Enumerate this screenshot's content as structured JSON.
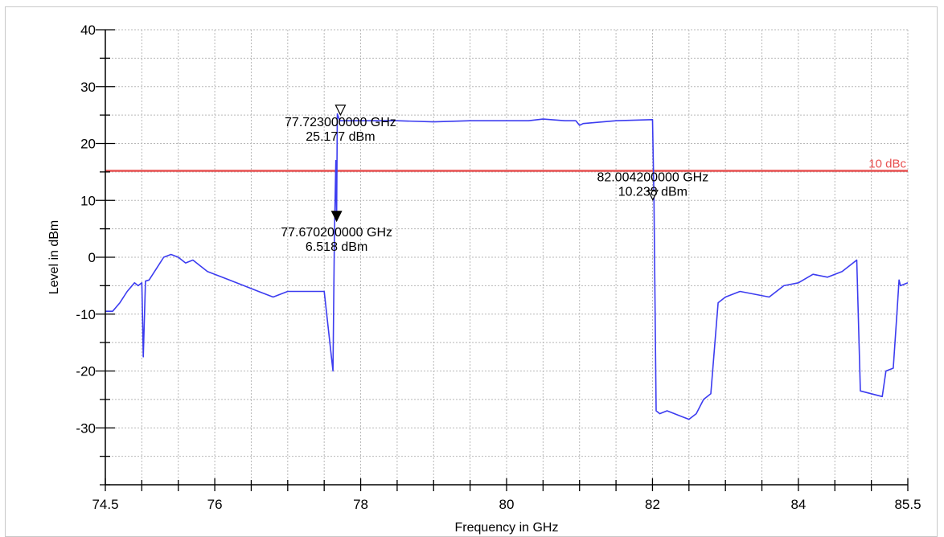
{
  "chart_data": {
    "type": "line",
    "xlabel": "Frequency in GHz",
    "ylabel": "Level in dBm",
    "xlim": [
      74.5,
      85.5
    ],
    "ylim": [
      -40,
      40
    ],
    "x_ticks": [
      74.5,
      76,
      78,
      80,
      82,
      84,
      85.5
    ],
    "y_ticks": [
      40,
      30,
      20,
      10,
      0,
      -10,
      -20,
      -30
    ],
    "grid": true,
    "colors": {
      "trace": "#3c3cf0",
      "reference": "#e85050",
      "grid": "#b8b8b8"
    },
    "reference_line": {
      "label": "10 dBc",
      "y": 15.2
    },
    "series": [
      {
        "x": [
          74.5,
          74.6,
          74.7,
          74.8,
          74.9,
          74.95,
          75.0,
          75.02,
          75.05,
          75.1,
          75.2,
          75.3,
          75.4,
          75.5,
          75.6,
          75.7,
          75.8,
          75.9,
          76.0,
          76.1,
          76.2,
          76.4,
          76.6,
          76.8,
          76.9,
          77.0,
          77.2,
          77.4,
          77.5,
          77.62,
          77.64,
          77.66,
          77.67,
          77.68,
          77.7,
          77.72,
          77.75,
          78.0,
          78.5,
          79.0,
          79.5,
          80.0,
          80.3,
          80.5,
          80.8,
          80.95,
          81.0,
          81.05,
          81.5,
          82.0,
          82.02,
          82.05,
          82.1,
          82.2,
          82.4,
          82.5,
          82.6,
          82.7,
          82.8,
          82.9,
          83.0,
          83.2,
          83.4,
          83.6,
          83.8,
          84.0,
          84.2,
          84.4,
          84.6,
          84.8,
          84.85,
          85.0,
          85.15,
          85.2,
          85.3,
          85.35,
          85.38,
          85.4,
          85.5
        ],
        "y": [
          -9.5,
          -9.5,
          -8.0,
          -6.0,
          -4.5,
          -5.0,
          -4.5,
          -17.5,
          -4.2,
          -4.0,
          -2.0,
          0.0,
          0.5,
          0.0,
          -1.0,
          -0.5,
          -1.5,
          -2.5,
          -3.0,
          -3.5,
          -4.0,
          -5.0,
          -6.0,
          -7.0,
          -6.5,
          -6.0,
          -6.0,
          -6.0,
          -6.0,
          -20.0,
          4.0,
          17.0,
          6.5,
          25.2,
          24.5,
          24.0,
          24.0,
          24.0,
          24.0,
          23.8,
          24.0,
          24.0,
          24.0,
          24.3,
          24.0,
          24.0,
          23.2,
          23.5,
          24.0,
          24.2,
          10.2,
          -27.0,
          -27.5,
          -27.0,
          -28.0,
          -28.5,
          -27.5,
          -25.0,
          -24.0,
          -8.0,
          -7.0,
          -6.0,
          -6.5,
          -7.0,
          -5.0,
          -4.5,
          -3.0,
          -3.5,
          -2.5,
          -0.5,
          -23.5,
          -24.0,
          -24.5,
          -20.0,
          -19.5,
          -10.0,
          -4.0,
          -5.0,
          -4.5
        ]
      }
    ],
    "markers": [
      {
        "x": 77.723,
        "y": 25.177,
        "freq_label": "77.723000000 GHz",
        "level_label": "25.177 dBm",
        "filled": false
      },
      {
        "x": 77.6702,
        "y": 6.518,
        "freq_label": "77.670200000 GHz",
        "level_label": "6.518 dBm",
        "filled": true
      },
      {
        "x": 82.0042,
        "y": 10.238,
        "freq_label": "82.004200000 GHz",
        "level_label": "10.238 dBm",
        "filled": false
      }
    ]
  }
}
